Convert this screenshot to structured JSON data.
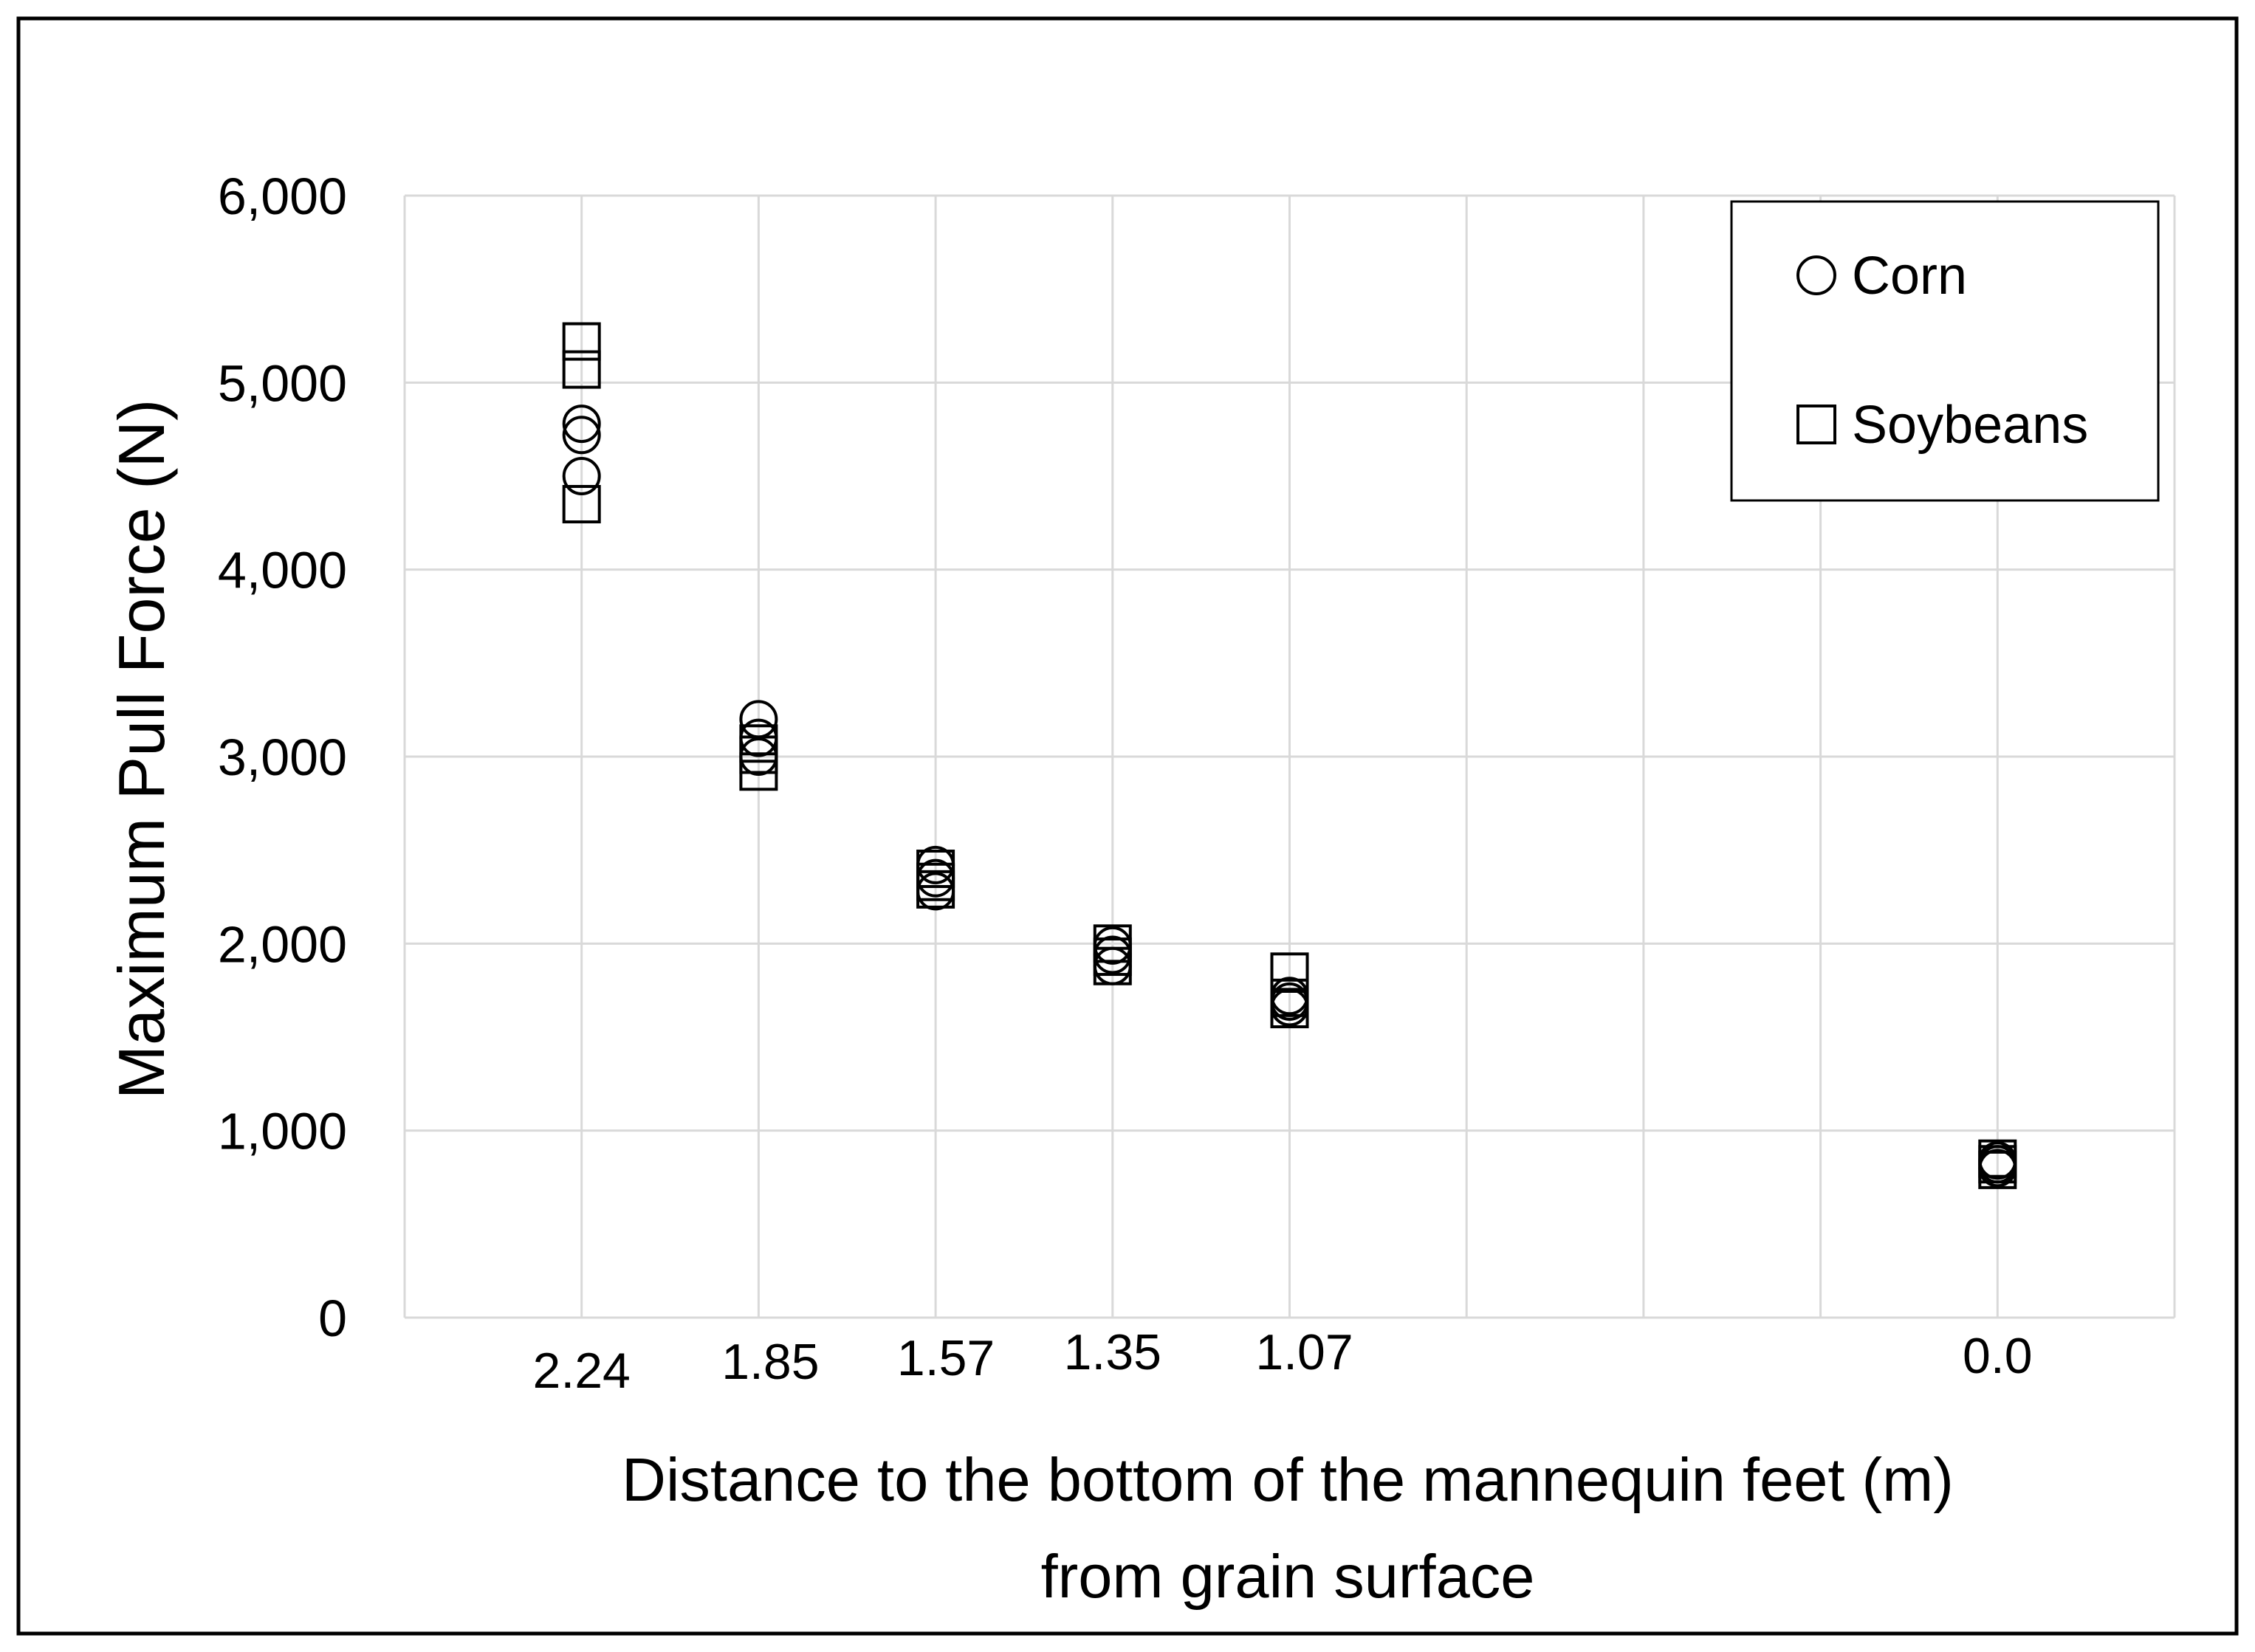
{
  "chart_data": {
    "type": "scatter",
    "title": "",
    "xlabel_lines": [
      "Distance to the bottom of the mannequin feet (m)",
      "from grain surface"
    ],
    "ylabel": "Maximum Pull Force (N)",
    "ylim": [
      0,
      6000
    ],
    "y_ticks": [
      {
        "value": 0,
        "label": "0"
      },
      {
        "value": 1000,
        "label": "1,000"
      },
      {
        "value": 2000,
        "label": "2,000"
      },
      {
        "value": 3000,
        "label": "3,000"
      },
      {
        "value": 4000,
        "label": "4,000"
      },
      {
        "value": 5000,
        "label": "5,000"
      },
      {
        "value": 6000,
        "label": "6,000"
      }
    ],
    "x_categories": [
      "2.24",
      "1.85",
      "1.57",
      "1.35",
      "1.07",
      "",
      "",
      "",
      "0.0"
    ],
    "grid": true,
    "legend_position": "top-right",
    "series": [
      {
        "name": "Corn",
        "marker": "circle",
        "points": [
          {
            "x": "2.24",
            "y": 4780
          },
          {
            "x": "2.24",
            "y": 4720
          },
          {
            "x": "2.24",
            "y": 4500
          },
          {
            "x": "1.85",
            "y": 3200
          },
          {
            "x": "1.85",
            "y": 3100
          },
          {
            "x": "1.85",
            "y": 3000
          },
          {
            "x": "1.57",
            "y": 2420
          },
          {
            "x": "1.57",
            "y": 2350
          },
          {
            "x": "1.57",
            "y": 2280
          },
          {
            "x": "1.35",
            "y": 1990
          },
          {
            "x": "1.35",
            "y": 1940
          },
          {
            "x": "1.35",
            "y": 1880
          },
          {
            "x": "1.07",
            "y": 1720
          },
          {
            "x": "1.07",
            "y": 1690
          },
          {
            "x": "1.07",
            "y": 1660
          },
          {
            "x": "0.0",
            "y": 840
          },
          {
            "x": "0.0",
            "y": 820
          },
          {
            "x": "0.0",
            "y": 800
          }
        ]
      },
      {
        "name": "Soybeans",
        "marker": "square",
        "points": [
          {
            "x": "2.24",
            "y": 5220
          },
          {
            "x": "2.24",
            "y": 5070
          },
          {
            "x": "2.24",
            "y": 4350
          },
          {
            "x": "1.85",
            "y": 3070
          },
          {
            "x": "1.85",
            "y": 3010
          },
          {
            "x": "1.85",
            "y": 2920
          },
          {
            "x": "1.57",
            "y": 2400
          },
          {
            "x": "1.57",
            "y": 2330
          },
          {
            "x": "1.57",
            "y": 2290
          },
          {
            "x": "1.35",
            "y": 2000
          },
          {
            "x": "1.35",
            "y": 1930
          },
          {
            "x": "1.35",
            "y": 1880
          },
          {
            "x": "1.07",
            "y": 1850
          },
          {
            "x": "1.07",
            "y": 1710
          },
          {
            "x": "1.07",
            "y": 1650
          },
          {
            "x": "0.0",
            "y": 850
          },
          {
            "x": "0.0",
            "y": 820
          },
          {
            "x": "0.0",
            "y": 790
          }
        ]
      }
    ]
  },
  "colors": {
    "grid": "#d9d9d9",
    "marker_stroke": "#000000",
    "frame": "#000000"
  }
}
